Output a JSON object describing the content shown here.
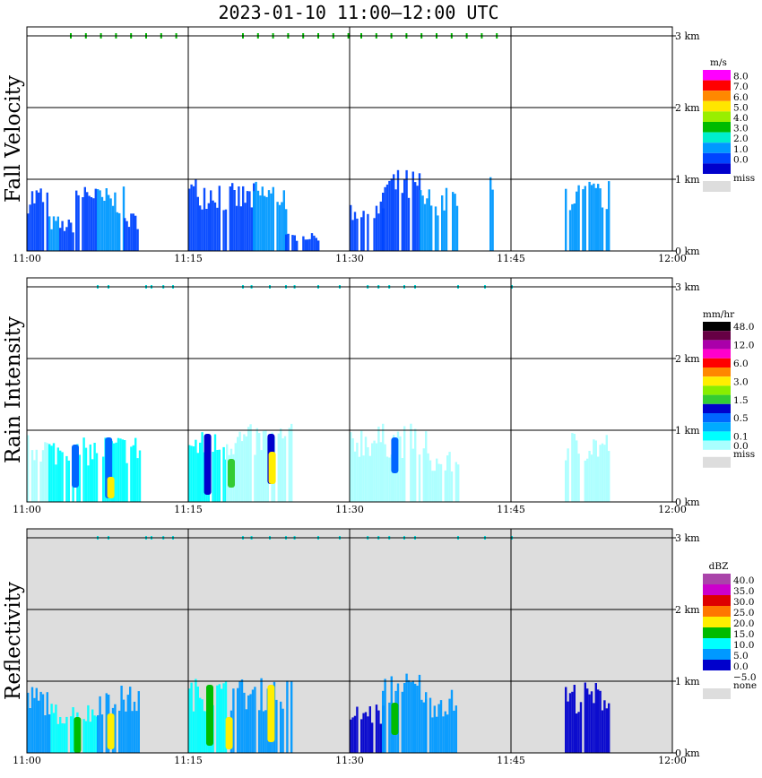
{
  "title": "2023-01-10   11:00–12:00 UTC",
  "chart_data": [
    {
      "type": "heatmap",
      "ylabel": "Fall Velocity",
      "x_ticks": [
        "11:00",
        "11:15",
        "11:30",
        "11:45",
        "12:00"
      ],
      "y_ticks": [
        "0 km",
        "1 km",
        "2 km",
        "3 km"
      ],
      "xlim": [
        "11:00",
        "12:00"
      ],
      "ylim_km": [
        0,
        3.1
      ],
      "background": "#ffffff",
      "colorbar": {
        "unit": "m/s",
        "bins": [
          {
            "label": "8.0",
            "color": "#ff00ff"
          },
          {
            "label": "7.0",
            "color": "#ff0000"
          },
          {
            "label": "6.0",
            "color": "#ff8800"
          },
          {
            "label": "5.0",
            "color": "#ffe600"
          },
          {
            "label": "4.0",
            "color": "#99ee00"
          },
          {
            "label": "3.0",
            "color": "#00bb00"
          },
          {
            "label": "2.0",
            "color": "#00eecc"
          },
          {
            "label": "1.0",
            "color": "#0099ff"
          },
          {
            "label": "0.0",
            "color": "#0044ff"
          },
          {
            "label": "",
            "color": "#0000cc"
          }
        ],
        "missing_label": "miss",
        "missing_color": "#dddddd"
      },
      "echo_regions": [
        {
          "x0": 0.0,
          "x1": 1.8,
          "top": 0.95,
          "color": "#0044ff"
        },
        {
          "x0": 2.0,
          "x1": 3.0,
          "top": 0.5,
          "color": "#0099ff"
        },
        {
          "x0": 3.0,
          "x1": 4.4,
          "top": 0.45,
          "color": "#0044ff"
        },
        {
          "x0": 4.5,
          "x1": 6.5,
          "top": 1.05,
          "color": "#0044ff"
        },
        {
          "x0": 6.5,
          "x1": 9.0,
          "top": 0.9,
          "color": "#0099ff"
        },
        {
          "x0": 9.0,
          "x1": 10.6,
          "top": 0.55,
          "color": "#0044ff"
        },
        {
          "x0": 15.0,
          "x1": 18.0,
          "top": 1.05,
          "color": "#0044ff"
        },
        {
          "x0": 18.0,
          "x1": 21.0,
          "top": 0.95,
          "color": "#0044ff"
        },
        {
          "x0": 21.0,
          "x1": 24.0,
          "top": 1.0,
          "color": "#0099ff"
        },
        {
          "x0": 24.0,
          "x1": 27.0,
          "top": 0.25,
          "color": "#0044ff"
        },
        {
          "x0": 30.0,
          "x1": 33.0,
          "top": 0.7,
          "color": "#0044ff"
        },
        {
          "x0": 33.0,
          "x1": 36.5,
          "top": 1.15,
          "color": "#0044ff"
        },
        {
          "x0": 36.5,
          "x1": 40.0,
          "top": 0.9,
          "color": "#0099ff"
        },
        {
          "x0": 43.0,
          "x1": 43.2,
          "top": 1.05,
          "color": "#0099ff"
        },
        {
          "x0": 50.0,
          "x1": 54.0,
          "top": 1.0,
          "color": "#0099ff"
        }
      ],
      "echo_tops": [
        {
          "x0": 4,
          "x1": 15,
          "at": 3.0,
          "color": "#00bb00"
        },
        {
          "x0": 20,
          "x1": 30,
          "at": 3.0,
          "color": "#00bb00"
        },
        {
          "x0": 31,
          "x1": 44,
          "at": 3.0,
          "color": "#00bb00"
        }
      ]
    },
    {
      "type": "heatmap",
      "ylabel": "Rain Intensity",
      "x_ticks": [
        "11:00",
        "11:15",
        "11:30",
        "11:45",
        "12:00"
      ],
      "y_ticks": [
        "0 km",
        "1 km",
        "2 km",
        "3 km"
      ],
      "xlim": [
        "11:00",
        "12:00"
      ],
      "ylim_km": [
        0,
        3.1
      ],
      "background": "#ffffff",
      "colorbar": {
        "unit": "mm/hr",
        "bins": [
          {
            "label": "48.0",
            "color": "#000000"
          },
          {
            "label": "",
            "color": "#660044"
          },
          {
            "label": "12.0",
            "color": "#aa00aa"
          },
          {
            "label": "",
            "color": "#ff00cc"
          },
          {
            "label": "6.0",
            "color": "#ff0000"
          },
          {
            "label": "",
            "color": "#ff8800"
          },
          {
            "label": "3.0",
            "color": "#ffee00"
          },
          {
            "label": "",
            "color": "#88ee00"
          },
          {
            "label": "1.5",
            "color": "#33cc33"
          },
          {
            "label": "",
            "color": "#0000cc"
          },
          {
            "label": "0.5",
            "color": "#0066ff"
          },
          {
            "label": "",
            "color": "#00aaff"
          },
          {
            "label": "0.1",
            "color": "#00ffff"
          },
          {
            "label": "0.0",
            "color": "#aaffff"
          }
        ],
        "missing_label": "miss",
        "missing_color": "#dddddd"
      },
      "echo_regions": [
        {
          "x0": 0.0,
          "x1": 2.0,
          "top": 0.95,
          "color": "#aaffff"
        },
        {
          "x0": 2.0,
          "x1": 6.5,
          "top": 0.9,
          "color": "#00ffff"
        },
        {
          "x0": 7.0,
          "x1": 10.5,
          "top": 0.95,
          "color": "#00ffff"
        },
        {
          "x0": 15.0,
          "x1": 18.5,
          "top": 1.0,
          "color": "#00ffff"
        },
        {
          "x0": 18.5,
          "x1": 24.5,
          "top": 1.1,
          "color": "#aaffff"
        },
        {
          "x0": 30.0,
          "x1": 37.0,
          "top": 1.1,
          "color": "#aaffff"
        },
        {
          "x0": 37.0,
          "x1": 40.0,
          "top": 0.7,
          "color": "#aaffff"
        },
        {
          "x0": 50.0,
          "x1": 54.0,
          "top": 1.0,
          "color": "#aaffff"
        }
      ],
      "cores": [
        {
          "x": 4.5,
          "y": 0.8,
          "h": 0.6,
          "color": "#0066ff"
        },
        {
          "x": 7.6,
          "y": 0.9,
          "h": 0.85,
          "color": "#0066ff"
        },
        {
          "x": 7.8,
          "y": 0.35,
          "h": 0.3,
          "color": "#ffee00"
        },
        {
          "x": 16.8,
          "y": 0.95,
          "h": 0.85,
          "color": "#0000cc"
        },
        {
          "x": 19.0,
          "y": 0.6,
          "h": 0.4,
          "color": "#33cc33"
        },
        {
          "x": 22.7,
          "y": 0.95,
          "h": 0.7,
          "color": "#0000cc"
        },
        {
          "x": 22.8,
          "y": 0.7,
          "h": 0.45,
          "color": "#ffee00"
        },
        {
          "x": 34.2,
          "y": 0.9,
          "h": 0.5,
          "color": "#0066ff"
        }
      ]
    },
    {
      "type": "heatmap",
      "ylabel": "Reflectivity",
      "x_ticks": [
        "11:00",
        "11:15",
        "11:30",
        "11:45",
        "12:00"
      ],
      "y_ticks": [
        "0 km",
        "1 km",
        "2 km",
        "3 km"
      ],
      "xlim": [
        "11:00",
        "12:00"
      ],
      "ylim_km": [
        0,
        3.1
      ],
      "background": "#dddddd",
      "colorbar": {
        "unit": "dBZ",
        "bins": [
          {
            "label": "40.0",
            "color": "#aa44aa"
          },
          {
            "label": "35.0",
            "color": "#cc00cc"
          },
          {
            "label": "30.0",
            "color": "#dd0000"
          },
          {
            "label": "25.0",
            "color": "#ff7700"
          },
          {
            "label": "20.0",
            "color": "#ffee00"
          },
          {
            "label": "15.0",
            "color": "#00bb00"
          },
          {
            "label": "10.0",
            "color": "#00ffff"
          },
          {
            "label": "5.0",
            "color": "#0099ff"
          },
          {
            "label": "0.0",
            "color": "#0000cc"
          },
          {
            "label": "−5.0",
            "color": "#ffffff"
          }
        ],
        "missing_label": "none",
        "missing_color": "#dddddd"
      },
      "echo_regions": [
        {
          "x0": 0.0,
          "x1": 2.0,
          "top": 0.95,
          "color": "#0099ff"
        },
        {
          "x0": 2.0,
          "x1": 6.5,
          "top": 0.7,
          "color": "#00ffff"
        },
        {
          "x0": 6.5,
          "x1": 10.5,
          "top": 0.95,
          "color": "#0099ff"
        },
        {
          "x0": 15.0,
          "x1": 18.5,
          "top": 1.05,
          "color": "#00ffff"
        },
        {
          "x0": 18.5,
          "x1": 24.5,
          "top": 1.05,
          "color": "#0099ff"
        },
        {
          "x0": 30.0,
          "x1": 33.0,
          "top": 0.7,
          "color": "#0000cc"
        },
        {
          "x0": 33.0,
          "x1": 37.0,
          "top": 1.15,
          "color": "#0099ff"
        },
        {
          "x0": 37.0,
          "x1": 40.0,
          "top": 0.9,
          "color": "#0099ff"
        },
        {
          "x0": 50.0,
          "x1": 54.0,
          "top": 1.0,
          "color": "#0000cc"
        }
      ],
      "cores": [
        {
          "x": 4.7,
          "y": 0.5,
          "h": 0.5,
          "color": "#00bb00"
        },
        {
          "x": 7.8,
          "y": 0.55,
          "h": 0.5,
          "color": "#ffee00"
        },
        {
          "x": 17.0,
          "y": 0.95,
          "h": 0.85,
          "color": "#00bb00"
        },
        {
          "x": 18.8,
          "y": 0.5,
          "h": 0.45,
          "color": "#ffee00"
        },
        {
          "x": 22.7,
          "y": 0.95,
          "h": 0.8,
          "color": "#ffee00"
        },
        {
          "x": 34.2,
          "y": 0.7,
          "h": 0.45,
          "color": "#00bb00"
        }
      ]
    }
  ]
}
